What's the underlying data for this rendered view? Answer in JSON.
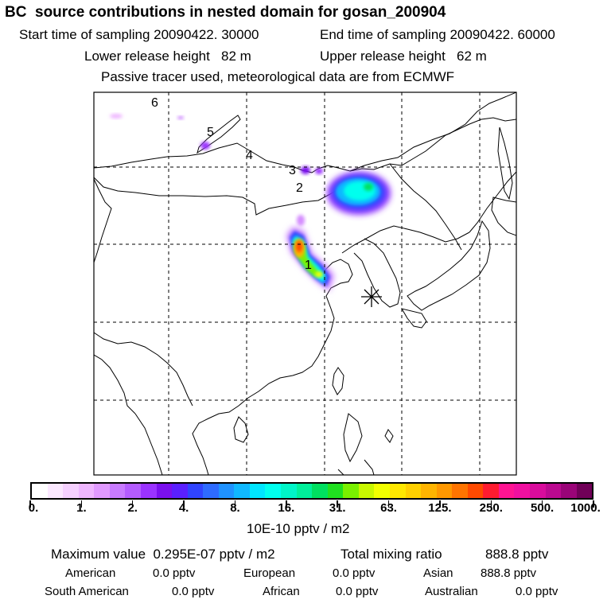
{
  "header": {
    "title": "BC  source contributions in nested domain for gosan_200904",
    "start_time": "Start time of sampling 20090422. 30000",
    "end_time": "End time of sampling 20090422. 60000",
    "lower_height": "Lower release height   82 m",
    "upper_height": "Upper release height   62 m",
    "note": "Passive tracer used, meteorological data are from ECMWF"
  },
  "map": {
    "site_markers": [
      "1",
      "2",
      "3",
      "4",
      "5",
      "6"
    ],
    "receptor_symbol": "star-receptor"
  },
  "colorbar": {
    "colors": [
      "#ffffff",
      "#fbe8ff",
      "#f5d0ff",
      "#eeb6ff",
      "#e099ff",
      "#c87bff",
      "#b45cff",
      "#9a33ff",
      "#7a10ee",
      "#5a20ff",
      "#3044ff",
      "#2e6bff",
      "#1f92ff",
      "#10b8ff",
      "#00e5ff",
      "#00ffee",
      "#00f5c8",
      "#00ef9a",
      "#00e060",
      "#20e020",
      "#7af000",
      "#c8f700",
      "#f2ff00",
      "#ffe800",
      "#ffd000",
      "#ffb400",
      "#ff9800",
      "#ff7400",
      "#ff4a00",
      "#ff1c30",
      "#ff1492",
      "#f010a0",
      "#d80c9c",
      "#bb0990",
      "#9a0478",
      "#700058"
    ],
    "labels": [
      "0.",
      "1.",
      "2.",
      "4.",
      "8.",
      "16.",
      "31.",
      "63.",
      "125.",
      "250.",
      "500.",
      "1000."
    ],
    "unit": "10E-10 pptv / m2"
  },
  "footer": {
    "max_value_label": "Maximum value  0.295E-07 pptv / m2",
    "total_label": "Total mixing ratio",
    "total_value": "888.8 pptv",
    "rows": [
      [
        {
          "name": "American",
          "value": "0.0 pptv"
        },
        {
          "name": "European",
          "value": "0.0 pptv"
        },
        {
          "name": "Asian",
          "value": "888.8 pptv"
        }
      ],
      [
        {
          "name": "South American",
          "value": "0.0 pptv"
        },
        {
          "name": "African",
          "value": "0.0 pptv"
        },
        {
          "name": "Australian",
          "value": "0.0 pptv"
        }
      ]
    ]
  }
}
